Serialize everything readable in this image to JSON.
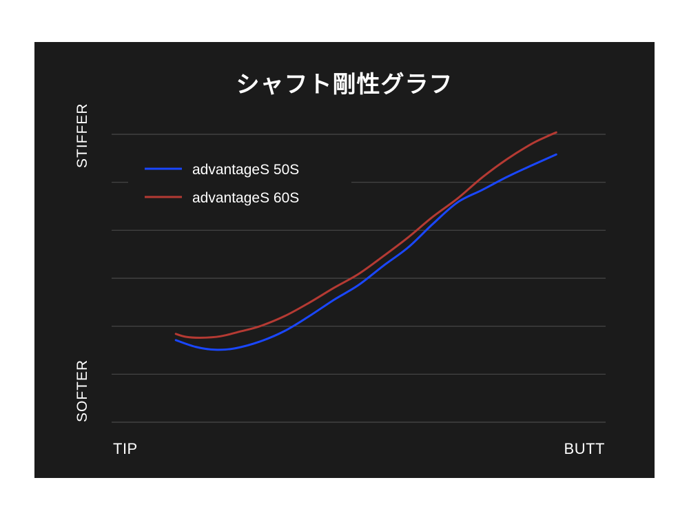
{
  "chart_data": {
    "type": "line",
    "title": "シャフト剛性グラフ",
    "ylabel_top": "STIFFER",
    "ylabel_bottom": "SOFTER",
    "xlabel_left": "TIP",
    "xlabel_right": "BUTT",
    "grid": true,
    "legend_position": "top-left",
    "ylim": [
      0,
      6
    ],
    "xlim": [
      0,
      100
    ],
    "series": [
      {
        "name": "advantageS 50S",
        "color": "#1a47ff",
        "x": [
          13,
          17,
          21,
          25,
          30,
          35,
          40,
          45,
          50,
          55,
          60,
          65,
          70,
          75,
          80,
          85,
          90
        ],
        "values": [
          1.71,
          1.57,
          1.51,
          1.54,
          1.68,
          1.9,
          2.21,
          2.55,
          2.86,
          3.26,
          3.64,
          4.13,
          4.58,
          4.84,
          5.11,
          5.35,
          5.58
        ]
      },
      {
        "name": "advantageS 60S",
        "color": "#b53a33",
        "x": [
          13,
          15,
          18,
          22,
          26,
          30,
          35,
          40,
          45,
          50,
          55,
          60,
          65,
          70,
          75,
          80,
          85,
          88,
          90
        ],
        "values": [
          1.84,
          1.78,
          1.76,
          1.79,
          1.89,
          2.0,
          2.21,
          2.49,
          2.8,
          3.09,
          3.46,
          3.85,
          4.28,
          4.66,
          5.1,
          5.48,
          5.8,
          5.95,
          6.04
        ]
      }
    ]
  }
}
